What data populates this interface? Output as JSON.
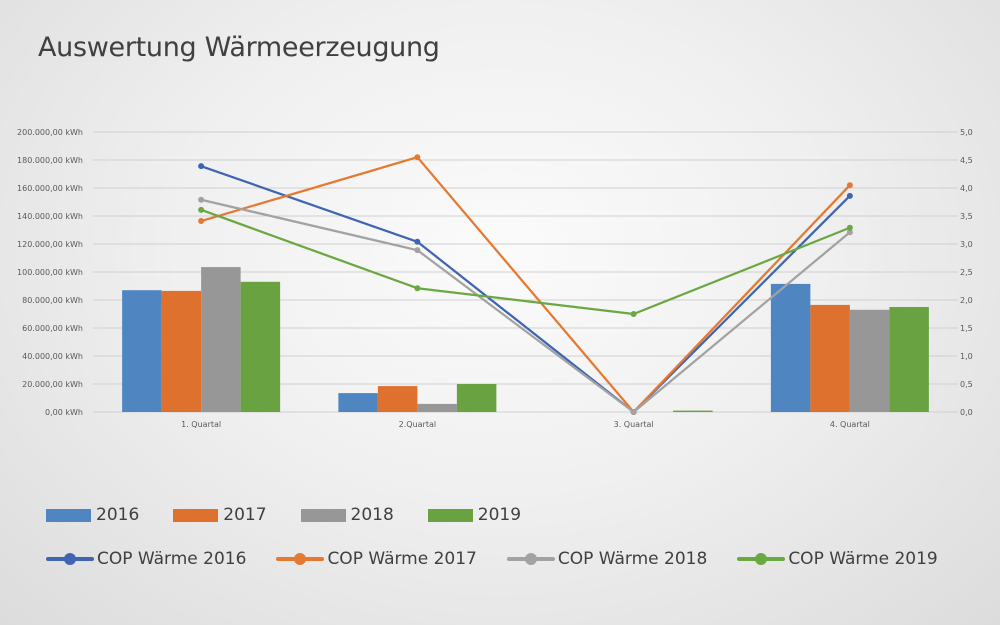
{
  "chart_data": {
    "type": "bar+line",
    "title": "Auswertung Wärmeerzeugung",
    "categories": [
      "1. Quartal",
      "2.Quartal",
      "3. Quartal",
      "4. Quartal"
    ],
    "y_left": {
      "label": "",
      "range": [
        0,
        200000
      ],
      "ticks": [
        "0,00 kWh",
        "20.000,00 kWh",
        "40.000,00 kWh",
        "60.000,00 kWh",
        "80.000,00 kWh",
        "100.000,00 kWh",
        "120.000,00 kWh",
        "140.000,00 kWh",
        "160.000,00 kWh",
        "180.000,00 kWh",
        "200.000,00 kWh"
      ]
    },
    "y_right": {
      "label": "",
      "range": [
        0,
        5
      ],
      "ticks": [
        "0,0",
        "0,5",
        "1,0",
        "1,5",
        "2,0",
        "2,5",
        "3,0",
        "3,5",
        "4,0",
        "4,5",
        "5,0"
      ]
    },
    "grid": true,
    "legend_position": "bottom",
    "bar_series": [
      {
        "name": "2016",
        "color": "#4f86c1",
        "values": [
          87000,
          13500,
          0,
          91500
        ]
      },
      {
        "name": "2017",
        "color": "#dd712d",
        "values": [
          86500,
          18500,
          0,
          76500
        ]
      },
      {
        "name": "2018",
        "color": "#979797",
        "values": [
          103500,
          5800,
          0,
          73000
        ]
      },
      {
        "name": "2019",
        "color": "#69a341",
        "values": [
          93000,
          20000,
          1000,
          75000
        ]
      }
    ],
    "line_series": [
      {
        "name": "COP Wärme 2016",
        "color": "#3f65b2",
        "values": [
          4.39,
          3.04,
          0.0,
          3.86
        ]
      },
      {
        "name": "COP Wärme 2017",
        "color": "#e57931",
        "values": [
          3.41,
          4.55,
          0.0,
          4.05
        ]
      },
      {
        "name": "COP Wärme 2018",
        "color": "#a2a2a2",
        "values": [
          3.79,
          2.89,
          0.0,
          3.21
        ]
      },
      {
        "name": "COP Wärme 2019",
        "color": "#6aa842",
        "values": [
          3.61,
          2.21,
          1.75,
          3.29
        ]
      }
    ]
  }
}
